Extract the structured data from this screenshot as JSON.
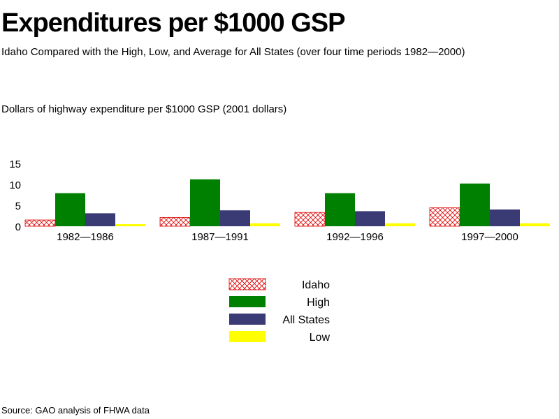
{
  "chart_data": {
    "type": "bar",
    "title": "Expenditures per $1000 GSP",
    "subtitle": "Idaho Compared with the High, Low, and Average for All States (over four time periods 1982—2000)",
    "ylabel": "Dollars of highway expenditure per $1000 GSP   (2001 dollars)",
    "xlabel": "",
    "categories": [
      "1982—1986",
      "1987—1991",
      "1992—1996",
      "1997—2000"
    ],
    "series": [
      {
        "name": "Idaho",
        "values": [
          1.5,
          2.1,
          3.3,
          4.4
        ]
      },
      {
        "name": "High",
        "values": [
          7.9,
          11.2,
          7.9,
          10.2
        ]
      },
      {
        "name": "All States",
        "values": [
          3.1,
          3.8,
          3.6,
          4.0
        ]
      },
      {
        "name": "Low",
        "values": [
          0.5,
          0.7,
          0.7,
          0.7
        ]
      }
    ],
    "ylim": [
      0,
      15
    ],
    "yticks": [
      0,
      5,
      10,
      15
    ],
    "grid": false,
    "legend": "bottom-center"
  },
  "colors": {
    "Idaho": "#e00000",
    "High": "#008000",
    "All States": "#3a3a75",
    "Low": "#ffff00"
  },
  "source": "Source: GAO analysis of FHWA data"
}
